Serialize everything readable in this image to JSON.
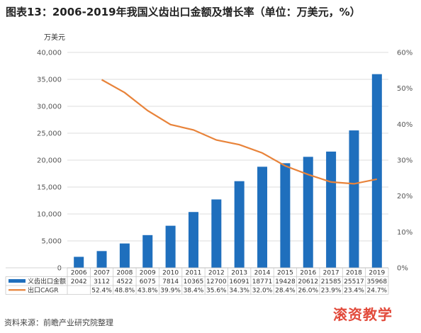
{
  "header": {
    "title": "图表13：2006-2019年我国义齿出口金额及增长率（单位：万美元，%）",
    "source": "资料来源：前瞻产业研究院整理",
    "watermark": "滚资教学"
  },
  "chart_data": {
    "type": "bar",
    "unit_label": "万美元",
    "categories": [
      "2006",
      "2007",
      "2008",
      "2009",
      "2010",
      "2011",
      "2012",
      "2013",
      "2014",
      "2015",
      "2016",
      "2017",
      "2018",
      "2019"
    ],
    "ylim": [
      0,
      40000
    ],
    "y_ticks": [
      "0",
      "5,000",
      "10,000",
      "15,000",
      "20,000",
      "25,000",
      "30,000",
      "35,000",
      "40,000"
    ],
    "y2lim": [
      0,
      60
    ],
    "y2_ticks": [
      "0%",
      "10%",
      "20%",
      "30%",
      "40%",
      "50%",
      "60%"
    ],
    "series": [
      {
        "name": "义齿出口金额",
        "type": "bar",
        "color": "#1f6fbd",
        "values": [
          2042,
          3112,
          4522,
          6075,
          7814,
          10365,
          12700,
          16091,
          18771,
          19428,
          20612,
          21585,
          25517,
          35968
        ],
        "labels": [
          "2042",
          "3112",
          "4522",
          "6075",
          "7814",
          "10365",
          "12700",
          "16091",
          "18771",
          "19428",
          "20612",
          "21585",
          "25517",
          "35968"
        ]
      },
      {
        "name": "出口CAGR",
        "type": "line",
        "axis": "right",
        "color": "#e8833a",
        "values": [
          null,
          52.4,
          48.8,
          43.8,
          39.9,
          38.4,
          35.6,
          34.3,
          32.0,
          28.4,
          26.0,
          23.9,
          23.4,
          24.7
        ],
        "labels": [
          "",
          "52.4%",
          "48.8%",
          "43.8%",
          "39.9%",
          "38.4%",
          "35.6%",
          "34.3%",
          "32.0%",
          "28.4%",
          "26.0%",
          "23.9%",
          "23.4%",
          "24.7%"
        ]
      }
    ],
    "grid": true
  }
}
